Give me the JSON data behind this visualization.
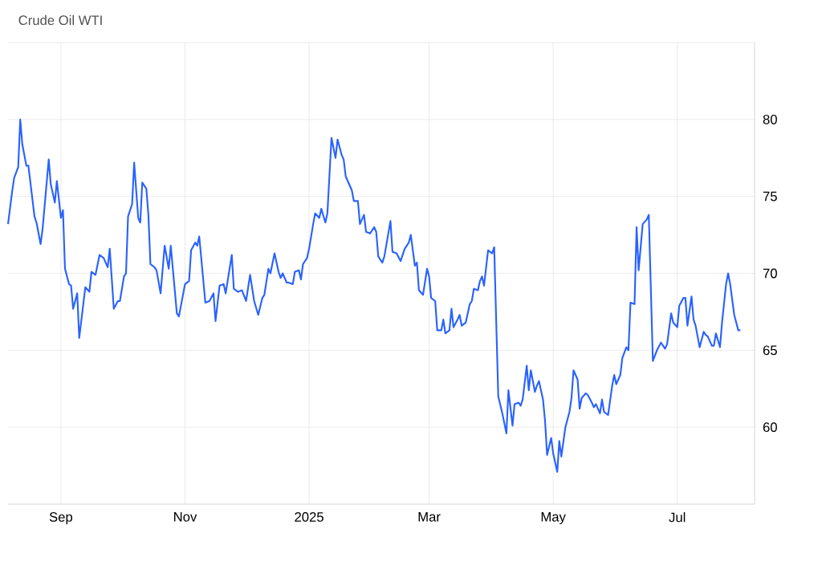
{
  "chart_data": {
    "type": "line",
    "title": "Crude Oil WTI",
    "x": [
      "2024-08-06",
      "2024-08-08",
      "2024-08-09",
      "2024-08-11",
      "2024-08-12",
      "2024-08-13",
      "2024-08-15",
      "2024-08-16",
      "2024-08-19",
      "2024-08-20",
      "2024-08-22",
      "2024-08-23",
      "2024-08-26",
      "2024-08-27",
      "2024-08-29",
      "2024-08-30",
      "2024-09-01",
      "2024-09-02",
      "2024-09-03",
      "2024-09-05",
      "2024-09-06",
      "2024-09-07",
      "2024-09-09",
      "2024-09-10",
      "2024-09-12",
      "2024-09-13",
      "2024-09-15",
      "2024-09-16",
      "2024-09-18",
      "2024-09-20",
      "2024-09-22",
      "2024-09-24",
      "2024-09-25",
      "2024-09-27",
      "2024-09-29",
      "2024-09-30",
      "2024-10-02",
      "2024-10-03",
      "2024-10-04",
      "2024-10-06",
      "2024-10-07",
      "2024-10-09",
      "2024-10-10",
      "2024-10-11",
      "2024-10-13",
      "2024-10-14",
      "2024-10-15",
      "2024-10-17",
      "2024-10-18",
      "2024-10-20",
      "2024-10-22",
      "2024-10-24",
      "2024-10-25",
      "2024-10-28",
      "2024-10-29",
      "2024-10-31",
      "2024-11-01",
      "2024-11-03",
      "2024-11-04",
      "2024-11-06",
      "2024-11-07",
      "2024-11-08",
      "2024-11-11",
      "2024-11-13",
      "2024-11-15",
      "2024-11-16",
      "2024-11-18",
      "2024-11-20",
      "2024-11-21",
      "2024-11-24",
      "2024-11-25",
      "2024-11-27",
      "2024-11-29",
      "2024-12-01",
      "2024-12-03",
      "2024-12-05",
      "2024-12-07",
      "2024-12-09",
      "2024-12-10",
      "2024-12-12",
      "2024-12-13",
      "2024-12-15",
      "2024-12-17",
      "2024-12-18",
      "2024-12-19",
      "2024-12-21",
      "2024-12-22",
      "2024-12-24",
      "2024-12-25",
      "2024-12-27",
      "2024-12-28",
      "2024-12-29",
      "2024-12-31",
      "2025-01-01",
      "2025-01-03",
      "2025-01-04",
      "2025-01-06",
      "2025-01-07",
      "2025-01-09",
      "2025-01-10",
      "2025-01-12",
      "2025-01-14",
      "2025-01-15",
      "2025-01-17",
      "2025-01-18",
      "2025-01-19",
      "2025-01-21",
      "2025-01-22",
      "2025-01-23",
      "2025-01-25",
      "2025-01-26",
      "2025-01-28",
      "2025-01-29",
      "2025-01-31",
      "2025-02-02",
      "2025-02-03",
      "2025-02-04",
      "2025-02-06",
      "2025-02-07",
      "2025-02-10",
      "2025-02-11",
      "2025-02-13",
      "2025-02-15",
      "2025-02-17",
      "2025-02-19",
      "2025-02-20",
      "2025-02-22",
      "2025-02-23",
      "2025-02-24",
      "2025-02-26",
      "2025-02-28",
      "2025-03-01",
      "2025-03-02",
      "2025-03-04",
      "2025-03-05",
      "2025-03-07",
      "2025-03-08",
      "2025-03-09",
      "2025-03-11",
      "2025-03-12",
      "2025-03-13",
      "2025-03-15",
      "2025-03-16",
      "2025-03-17",
      "2025-03-19",
      "2025-03-21",
      "2025-03-22",
      "2025-03-23",
      "2025-03-25",
      "2025-03-26",
      "2025-03-27",
      "2025-03-28",
      "2025-03-30",
      "2025-04-01",
      "2025-04-02",
      "2025-04-04",
      "2025-04-06",
      "2025-04-08",
      "2025-04-09",
      "2025-04-11",
      "2025-04-12",
      "2025-04-14",
      "2025-04-15",
      "2025-04-16",
      "2025-04-18",
      "2025-04-19",
      "2025-04-20",
      "2025-04-22",
      "2025-04-23",
      "2025-04-24",
      "2025-04-26",
      "2025-04-27",
      "2025-04-28",
      "2025-04-30",
      "2025-05-01",
      "2025-05-03",
      "2025-05-04",
      "2025-05-05",
      "2025-05-07",
      "2025-05-09",
      "2025-05-10",
      "2025-05-11",
      "2025-05-13",
      "2025-05-14",
      "2025-05-15",
      "2025-05-17",
      "2025-05-18",
      "2025-05-20",
      "2025-05-21",
      "2025-05-22",
      "2025-05-24",
      "2025-05-25",
      "2025-05-26",
      "2025-05-28",
      "2025-05-30",
      "2025-05-31",
      "2025-06-01",
      "2025-06-03",
      "2025-06-04",
      "2025-06-06",
      "2025-06-07",
      "2025-06-08",
      "2025-06-10",
      "2025-06-11",
      "2025-06-12",
      "2025-06-14",
      "2025-06-16",
      "2025-06-17",
      "2025-06-19",
      "2025-06-21",
      "2025-06-23",
      "2025-06-25",
      "2025-06-26",
      "2025-06-28",
      "2025-06-29",
      "2025-07-01",
      "2025-07-02",
      "2025-07-04",
      "2025-07-05",
      "2025-07-06",
      "2025-07-08",
      "2025-07-09",
      "2025-07-10",
      "2025-07-12",
      "2025-07-14",
      "2025-07-15",
      "2025-07-16",
      "2025-07-18",
      "2025-07-19",
      "2025-07-20",
      "2025-07-22",
      "2025-07-23",
      "2025-07-25",
      "2025-07-26",
      "2025-07-27",
      "2025-07-29",
      "2025-07-31",
      "2025-08-01"
    ],
    "series": [
      {
        "color": "#2962ff",
        "values": [
          73.2,
          75.3,
          76.2,
          76.9,
          80.0,
          78.4,
          77.0,
          77.0,
          73.7,
          73.3,
          71.9,
          72.9,
          77.4,
          75.8,
          74.6,
          76.0,
          73.6,
          74.1,
          70.3,
          69.3,
          69.2,
          67.7,
          68.7,
          65.8,
          68.0,
          69.1,
          68.8,
          70.1,
          69.9,
          71.2,
          71.0,
          70.4,
          71.6,
          67.7,
          68.2,
          68.2,
          69.8,
          70.0,
          73.7,
          74.5,
          77.2,
          73.6,
          73.3,
          75.9,
          75.5,
          73.8,
          70.6,
          70.4,
          70.2,
          68.7,
          71.8,
          70.3,
          71.8,
          67.4,
          67.2,
          68.6,
          69.3,
          69.5,
          71.5,
          72.0,
          71.8,
          72.4,
          68.1,
          68.2,
          68.7,
          66.9,
          69.2,
          69.3,
          68.7,
          71.2,
          69.0,
          68.8,
          68.9,
          68.2,
          69.9,
          68.2,
          67.3,
          68.4,
          68.6,
          70.3,
          70.0,
          71.3,
          70.1,
          69.7,
          70.0,
          69.4,
          69.4,
          69.3,
          70.1,
          70.2,
          69.6,
          70.6,
          71.0,
          71.6,
          73.2,
          73.9,
          73.6,
          74.2,
          73.3,
          73.9,
          78.8,
          77.5,
          78.7,
          77.7,
          77.4,
          76.3,
          75.7,
          75.4,
          74.7,
          74.7,
          73.2,
          73.8,
          72.7,
          72.6,
          73.0,
          72.7,
          71.1,
          70.7,
          71.1,
          73.4,
          71.4,
          71.3,
          70.8,
          71.6,
          72.0,
          72.5,
          70.5,
          70.7,
          68.9,
          68.6,
          70.3,
          69.8,
          68.4,
          68.2,
          66.3,
          66.3,
          67.0,
          66.1,
          66.3,
          67.7,
          66.5,
          67.0,
          67.3,
          66.6,
          66.8,
          68.0,
          68.2,
          69.0,
          68.9,
          69.5,
          69.8,
          69.2,
          71.5,
          71.3,
          71.7,
          62.0,
          60.9,
          59.6,
          62.4,
          60.1,
          61.5,
          61.6,
          61.4,
          61.8,
          64.0,
          62.4,
          63.7,
          62.3,
          62.7,
          63.0,
          61.8,
          60.4,
          58.2,
          59.3,
          58.3,
          57.1,
          59.1,
          58.1,
          60.0,
          61.0,
          61.9,
          63.7,
          63.1,
          61.2,
          61.9,
          62.2,
          62.1,
          61.6,
          61.3,
          61.5,
          60.9,
          61.8,
          61.0,
          60.8,
          62.7,
          63.4,
          62.8,
          63.4,
          64.5,
          65.2,
          65.0,
          68.1,
          68.0,
          73.0,
          70.2,
          73.2,
          73.5,
          73.8,
          64.3,
          65.0,
          65.5,
          65.1,
          65.4,
          67.4,
          66.8,
          66.5,
          67.9,
          68.4,
          68.4,
          66.6,
          68.5,
          67.0,
          66.6,
          65.2,
          66.2,
          66.0,
          65.9,
          65.3,
          65.3,
          66.1,
          65.2,
          66.8,
          69.3,
          70.0,
          69.3,
          67.3,
          66.3,
          66.3
        ]
      }
    ],
    "xlim": [
      "2024-08-06",
      "2025-08-08"
    ],
    "xticks": [
      {
        "value": "2024-09-01",
        "label": "Sep"
      },
      {
        "value": "2024-11-01",
        "label": "Nov"
      },
      {
        "value": "2025-01-01",
        "label": "2025"
      },
      {
        "value": "2025-03-01",
        "label": "Mar"
      },
      {
        "value": "2025-05-01",
        "label": "May"
      },
      {
        "value": "2025-07-01",
        "label": "Jul"
      }
    ],
    "ylim": [
      55,
      85
    ],
    "yticks": [
      60,
      65,
      70,
      75,
      80,
      {
        "value": 85,
        "label": null
      }
    ],
    "grid": true,
    "line_style": "solid",
    "marker": "none"
  }
}
